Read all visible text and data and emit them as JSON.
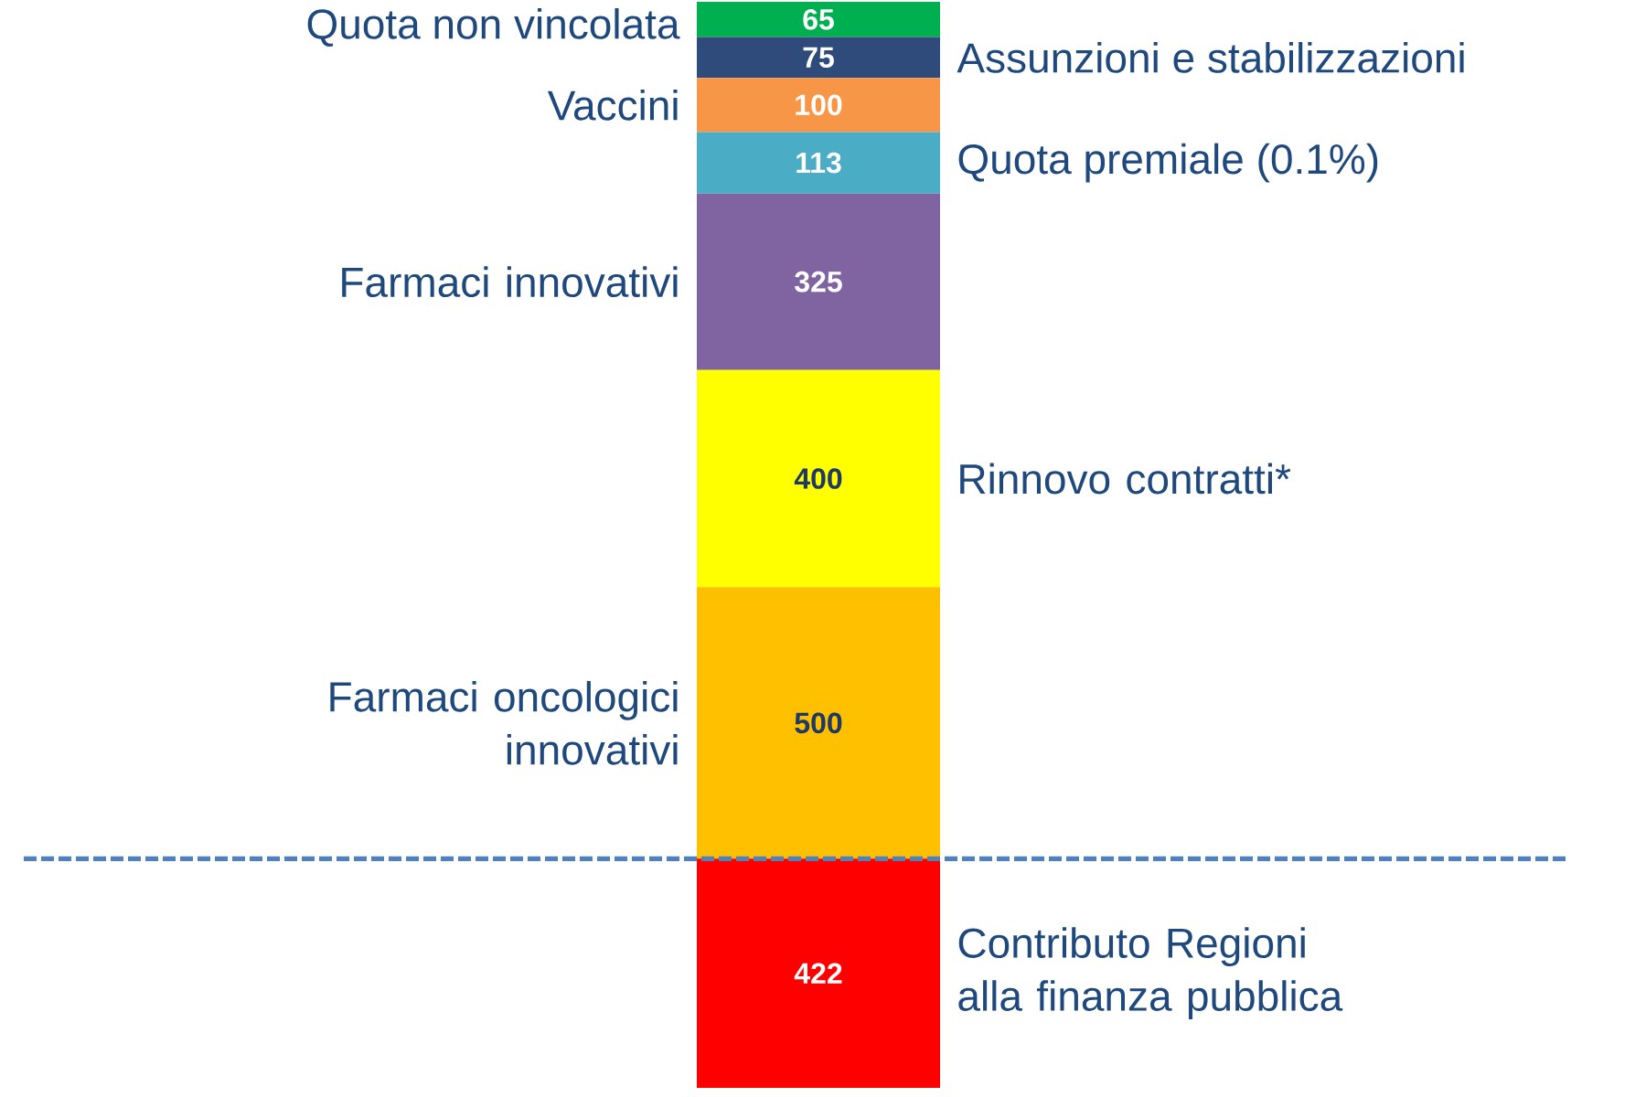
{
  "chart_data": {
    "type": "bar",
    "stacked": true,
    "categories": [
      null
    ],
    "series": [
      {
        "name": "Contributo Regioni alla finanza pubblica",
        "color": "#ff0000",
        "values": [
          422
        ]
      },
      {
        "name": "Farmaci oncologici innovativi",
        "color": "#ffc000",
        "values": [
          500
        ]
      },
      {
        "name": "Rinnovo contratti*",
        "color": "#ffff00",
        "values": [
          400
        ]
      },
      {
        "name": "Farmaci innovativi",
        "color": "#8064a2",
        "values": [
          325
        ]
      },
      {
        "name": "Quota premiale (0.1%)",
        "color": "#4bacc6",
        "values": [
          113
        ]
      },
      {
        "name": "Vaccini",
        "color": "#f79646",
        "values": [
          100
        ]
      },
      {
        "name": "Assunzioni e stabilizzazioni",
        "color": "#2f4b7c",
        "values": [
          75
        ]
      },
      {
        "name": "Quota non vincolata",
        "color": "#00b050",
        "values": [
          65
        ]
      }
    ],
    "tick_labels": false,
    "data_labels": true,
    "ref_lines": [
      {
        "axis": "y",
        "value": 422,
        "color": "#4f81bd",
        "line_style": "dashed"
      }
    ]
  }
}
